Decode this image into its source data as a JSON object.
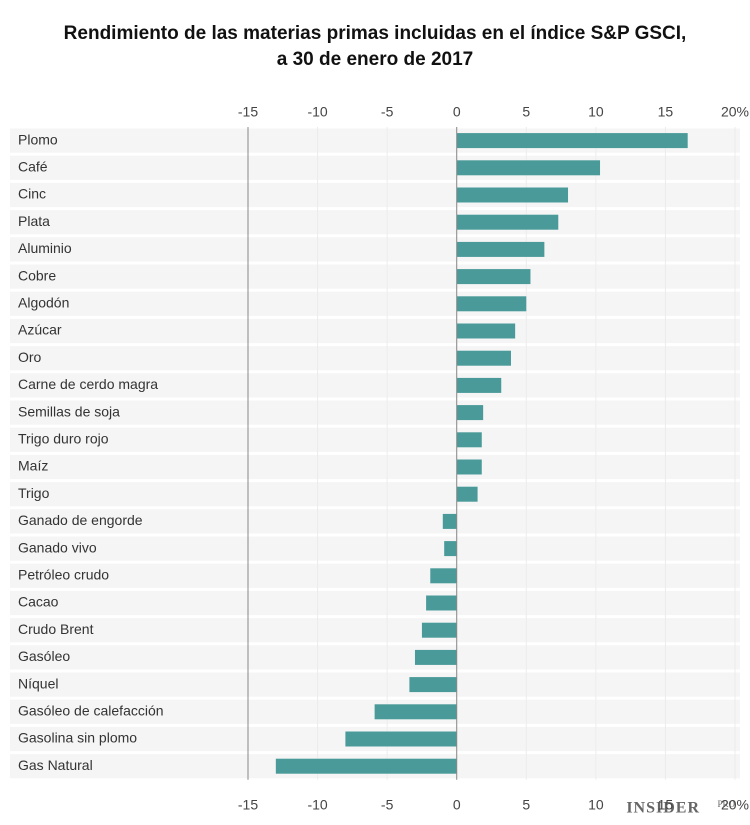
{
  "chart_data": {
    "type": "bar",
    "orientation": "horizontal",
    "title": [
      "Rendimiento de las materias primas incluidas en el índice S&P GSCI,",
      "a 30 de enero de 2017"
    ],
    "categories": [
      "Plomo",
      "Café",
      "Cinc",
      "Plata",
      "Aluminio",
      "Cobre",
      "Algodón",
      "Azúcar",
      "Oro",
      "Carne de cerdo magra",
      "Semillas de soja",
      "Trigo duro rojo",
      "Maíz",
      "Trigo",
      "Ganado de engorde",
      "Ganado vivo",
      "Petróleo crudo",
      "Cacao",
      "Crudo Brent",
      "Gasóleo",
      "Níquel",
      "Gasóleo de calefacción",
      "Gasolina sin plomo",
      "Gas Natural"
    ],
    "values": [
      16.6,
      10.3,
      8.0,
      7.3,
      6.3,
      5.3,
      5.0,
      4.2,
      3.9,
      3.2,
      1.9,
      1.8,
      1.8,
      1.5,
      -1.0,
      -0.9,
      -1.9,
      -2.2,
      -2.5,
      -3.0,
      -3.4,
      -5.9,
      -8.0,
      -13.0
    ],
    "color": "#4a9a9a",
    "xlim": [
      -15,
      20
    ],
    "xticks": [
      -15,
      -10,
      -5,
      0,
      5,
      10,
      15,
      {
        "value": 20,
        "label": "20%"
      }
    ],
    "grid": true
  },
  "footer": {
    "brand": "INSIDER",
    "sub": "PRO"
  }
}
